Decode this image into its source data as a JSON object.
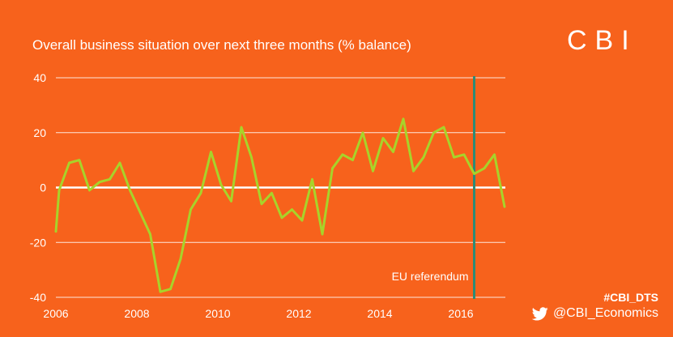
{
  "brand": {
    "logo_text": "CBI",
    "hashtag": "#CBI_DTS",
    "twitter_handle": "@CBI_Economics"
  },
  "colors": {
    "background": "#f7621c",
    "series": "#a8d32a",
    "marker": "#2e8b76",
    "text": "#ffffff"
  },
  "chart_data": {
    "type": "line",
    "title": "Overall business situation over next three months (% balance)",
    "xlabel": "",
    "ylabel": "",
    "xlim": [
      2006.0,
      2017.1
    ],
    "ylim": [
      -40,
      40
    ],
    "x_ticks": [
      2006,
      2008,
      2010,
      2012,
      2014,
      2016
    ],
    "x_tick_labels": [
      "2006",
      "2008",
      "2010",
      "2012",
      "2014",
      "2016"
    ],
    "y_ticks": [
      40,
      20,
      0,
      -20,
      -40
    ],
    "y_tick_labels": [
      "40",
      "20",
      "0",
      "-20",
      "-40"
    ],
    "grid": true,
    "series": [
      {
        "name": "Overall business situation",
        "x": [
          2006.0,
          2006.08,
          2006.33,
          2006.58,
          2006.83,
          2007.08,
          2007.33,
          2007.58,
          2007.83,
          2008.08,
          2008.33,
          2008.58,
          2008.83,
          2009.08,
          2009.33,
          2009.58,
          2009.83,
          2010.08,
          2010.33,
          2010.58,
          2010.83,
          2011.08,
          2011.33,
          2011.58,
          2011.83,
          2012.08,
          2012.33,
          2012.58,
          2012.83,
          2013.08,
          2013.33,
          2013.58,
          2013.83,
          2014.08,
          2014.33,
          2014.58,
          2014.83,
          2015.08,
          2015.33,
          2015.58,
          2015.83,
          2016.08,
          2016.33,
          2016.58,
          2016.83,
          2017.08
        ],
        "y": [
          -16,
          -1,
          9,
          10,
          -1,
          2,
          3,
          9,
          -1,
          -9,
          -17,
          -38,
          -37,
          -26,
          -8,
          -2,
          13,
          1,
          -5,
          22,
          11,
          -6,
          -2,
          -11,
          -8,
          -12,
          3,
          -17,
          7,
          12,
          10,
          20,
          6,
          18,
          13,
          25,
          6,
          11,
          20,
          22,
          11,
          12,
          5,
          7,
          12,
          -7
        ]
      }
    ],
    "annotations": [
      {
        "x": 2016.33,
        "label": "EU referendum"
      }
    ]
  }
}
